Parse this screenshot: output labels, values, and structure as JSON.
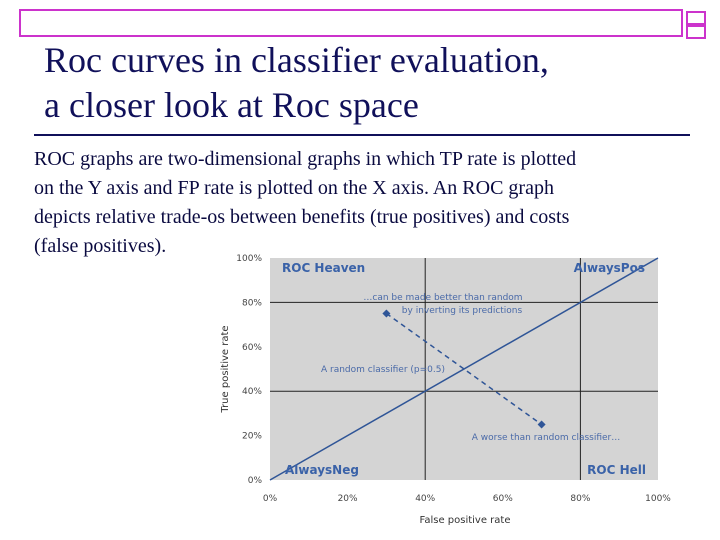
{
  "slide": {
    "title": [
      "Roc curves in classifier evaluation,",
      "a closer look at Roc space"
    ],
    "body": [
      "ROC graphs are two-dimensional graphs in which TP rate is plotted",
      "on the Y axis and FP rate is plotted on the X axis. An ROC graph",
      "depicts relative trade-os between benefits (true positives) and costs",
      "(false positives)."
    ]
  },
  "chart_data": {
    "type": "line",
    "xlabel": "False positive rate",
    "ylabel": "True positive rate",
    "xlim": [
      0,
      100
    ],
    "ylim": [
      0,
      100
    ],
    "xticks": [
      {
        "value": 0,
        "label": "0%"
      },
      {
        "value": 20,
        "label": "20%"
      },
      {
        "value": 40,
        "label": "40%"
      },
      {
        "value": 60,
        "label": "60%"
      },
      {
        "value": 80,
        "label": "80%"
      },
      {
        "value": 100,
        "label": "100%"
      }
    ],
    "yticks": [
      {
        "value": 0,
        "label": "0%"
      },
      {
        "value": 20,
        "label": "20%"
      },
      {
        "value": 40,
        "label": "40%"
      },
      {
        "value": 60,
        "label": "60%"
      },
      {
        "value": 80,
        "label": "80%"
      },
      {
        "value": 100,
        "label": "100%"
      }
    ],
    "series": [
      {
        "x": [
          0,
          100
        ],
        "values": [
          0,
          100
        ],
        "color": "#2f5597",
        "style": "solid"
      },
      {
        "x": [
          30,
          70
        ],
        "values": [
          75,
          25
        ],
        "color": "#2f5597",
        "style": "dashed",
        "markers": true
      }
    ],
    "annotations": [
      "ROC Heaven",
      "AlwaysPos",
      "AlwaysNeg",
      "ROC Hell",
      "…can be made better than random",
      "by inverting its predictions",
      "A random classifier (p=0.5)",
      "A worse than random classifier…"
    ]
  }
}
